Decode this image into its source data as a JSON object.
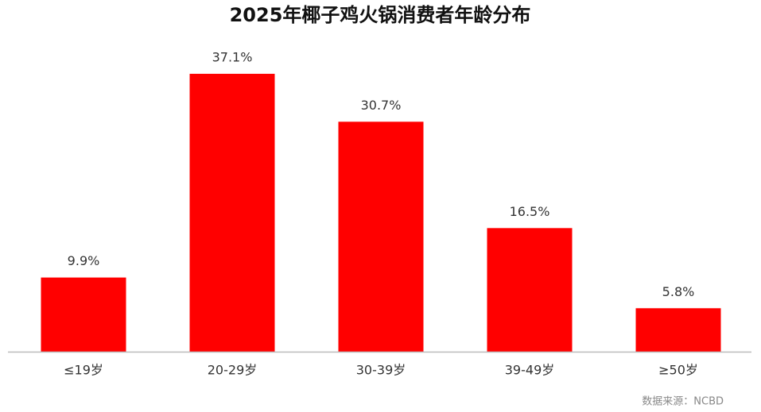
{
  "chart_data": {
    "type": "bar",
    "title": "2025年椰子鸡火锅消费者年龄分布",
    "categories": [
      "≤19岁",
      "20-29岁",
      "30-39岁",
      "39-49岁",
      "≥50岁"
    ],
    "values": [
      9.9,
      37.1,
      30.7,
      16.5,
      5.8
    ],
    "value_labels": [
      "9.9%",
      "37.1%",
      "30.7%",
      "16.5%",
      "5.8%"
    ],
    "color": "#ff0000",
    "ylim": [
      0,
      40
    ],
    "grid": false,
    "source": "数据来源：NCBD"
  }
}
